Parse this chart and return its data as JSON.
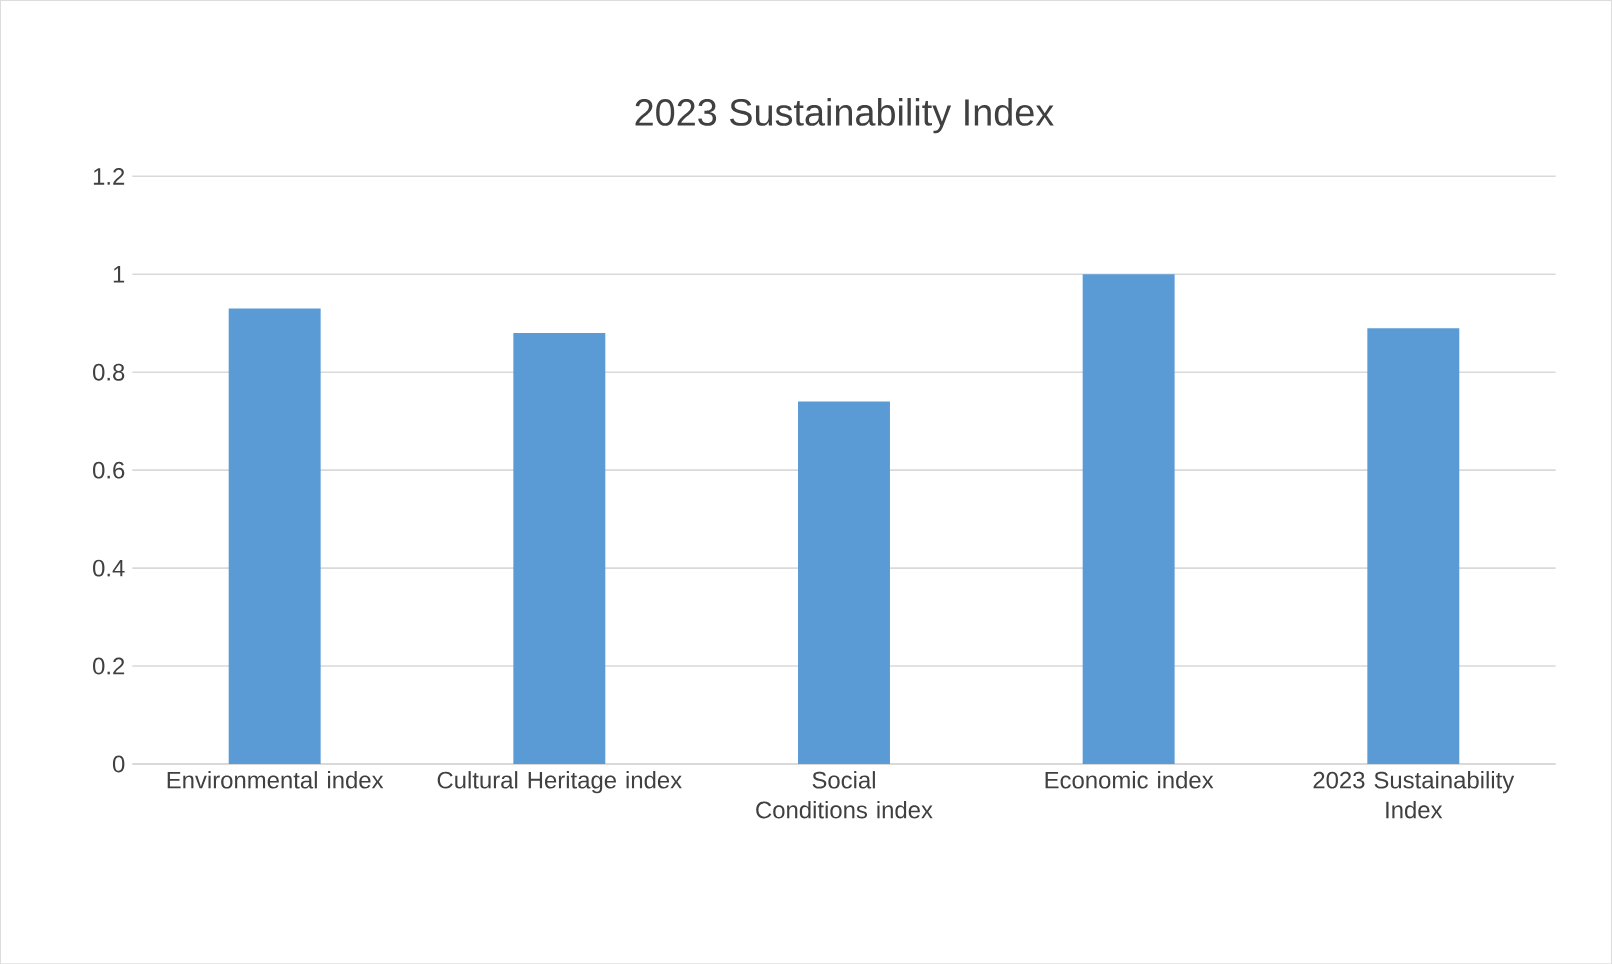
{
  "chart_data": {
    "type": "bar",
    "title": "2023 Sustainability Index",
    "categories": [
      "Environmental index",
      "Cultural Heritage index",
      "Social Conditions index",
      "Economic index",
      "2023 Sustainability Index"
    ],
    "values": [
      0.93,
      0.88,
      0.74,
      1.0,
      0.89
    ],
    "color": "#5b9bd5",
    "ylim": [
      0,
      1.2
    ],
    "yticks": [
      0,
      0.2,
      0.4,
      0.6,
      0.8,
      1,
      1.2
    ],
    "grid": "y",
    "legend": false
  }
}
